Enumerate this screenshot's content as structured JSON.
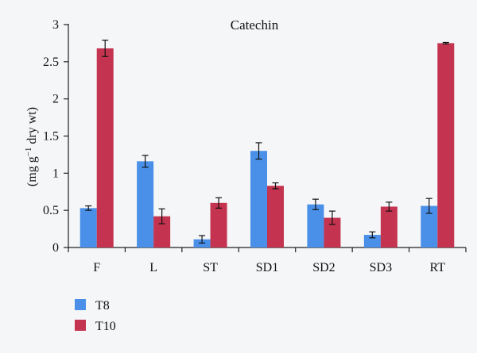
{
  "chart_data": {
    "type": "bar",
    "title": "Catechin",
    "ylabel_main": "(mg g",
    "ylabel_sup": "−1",
    "ylabel_rest": " dry wt)",
    "categories": [
      "F",
      "L",
      "ST",
      "SD1",
      "SD2",
      "SD3",
      "RT"
    ],
    "series": [
      {
        "name": "T8",
        "color": "#4a90e8",
        "values": [
          0.53,
          1.16,
          0.11,
          1.3,
          0.58,
          0.17,
          0.56
        ],
        "errors": [
          0.03,
          0.08,
          0.05,
          0.11,
          0.07,
          0.04,
          0.1
        ]
      },
      {
        "name": "T10",
        "color": "#c4334f",
        "values": [
          2.68,
          0.42,
          0.6,
          0.83,
          0.4,
          0.55,
          2.75
        ],
        "errors": [
          0.11,
          0.1,
          0.07,
          0.04,
          0.09,
          0.06,
          0.01
        ]
      }
    ],
    "ylim": [
      0,
      3
    ],
    "yticks": [
      "0",
      "0.5",
      "1",
      "1.5",
      "2",
      "2.5",
      "3"
    ],
    "ytick_values": [
      0,
      0.5,
      1,
      1.5,
      2,
      2.5,
      3
    ],
    "legend_position": "bottom-left",
    "grid": false
  }
}
